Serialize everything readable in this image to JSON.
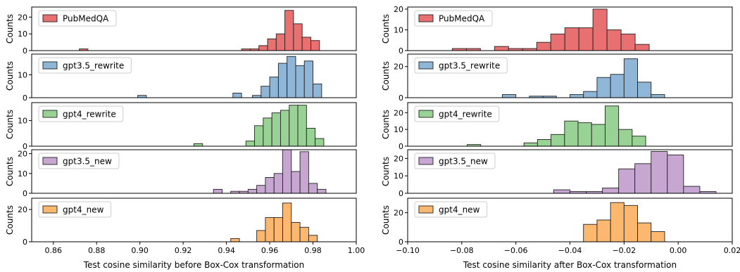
{
  "chart_data": [
    {
      "type": "histogram",
      "xlabel": "Test cosine similarity before Box-Cox transformation",
      "ylabel": "Counts",
      "xlim": [
        0.85,
        1.0
      ],
      "xticks": [
        0.86,
        0.88,
        0.9,
        0.92,
        0.94,
        0.96,
        0.98,
        1.0
      ],
      "xtick_labels": [
        "0.86",
        "0.88",
        "0.90",
        "0.92",
        "0.94",
        "0.96",
        "0.98",
        "1.00"
      ],
      "legend_position": "upper-left",
      "panels": [
        {
          "name": "PubMedQA",
          "color": "#e87070",
          "ylim": [
            0,
            26
          ],
          "yticks": [
            0,
            10,
            20
          ],
          "bins": [
            [
              0.872,
              0.876,
              1
            ],
            [
              0.947,
              0.951,
              1
            ],
            [
              0.951,
              0.955,
              1
            ],
            [
              0.955,
              0.959,
              3
            ],
            [
              0.959,
              0.963,
              7
            ],
            [
              0.963,
              0.967,
              10
            ],
            [
              0.967,
              0.971,
              24
            ],
            [
              0.971,
              0.975,
              16
            ],
            [
              0.975,
              0.979,
              8
            ],
            [
              0.979,
              0.983,
              6
            ]
          ]
        },
        {
          "name": "gpt3.5_rewrite",
          "color": "#8fb6d6",
          "ylim": [
            0,
            19
          ],
          "yticks": [
            0,
            10
          ],
          "bins": [
            [
              0.899,
              0.903,
              1
            ],
            [
              0.943,
              0.947,
              2
            ],
            [
              0.952,
              0.956,
              1
            ],
            [
              0.956,
              0.96,
              5
            ],
            [
              0.96,
              0.964,
              9
            ],
            [
              0.964,
              0.968,
              15
            ],
            [
              0.968,
              0.972,
              18
            ],
            [
              0.972,
              0.976,
              14
            ],
            [
              0.976,
              0.98,
              16
            ],
            [
              0.98,
              0.984,
              6
            ]
          ]
        },
        {
          "name": "gpt4_rewrite",
          "color": "#98d294",
          "ylim": [
            0,
            17
          ],
          "yticks": [
            0,
            10
          ],
          "bins": [
            [
              0.925,
              0.929,
              1
            ],
            [
              0.949,
              0.953,
              2
            ],
            [
              0.953,
              0.957,
              8
            ],
            [
              0.957,
              0.961,
              11
            ],
            [
              0.961,
              0.965,
              13
            ],
            [
              0.965,
              0.969,
              14
            ],
            [
              0.969,
              0.973,
              16
            ],
            [
              0.973,
              0.977,
              16
            ],
            [
              0.977,
              0.981,
              7
            ],
            [
              0.981,
              0.985,
              3
            ]
          ]
        },
        {
          "name": "gpt3.5_new",
          "color": "#c7a7d2",
          "ylim": [
            0,
            22
          ],
          "yticks": [
            0,
            10,
            20
          ],
          "bins": [
            [
              0.934,
              0.938,
              2
            ],
            [
              0.942,
              0.946,
              1
            ],
            [
              0.946,
              0.95,
              1
            ],
            [
              0.95,
              0.954,
              2
            ],
            [
              0.954,
              0.958,
              4
            ],
            [
              0.958,
              0.962,
              8
            ],
            [
              0.962,
              0.966,
              10
            ],
            [
              0.966,
              0.97,
              22
            ],
            [
              0.97,
              0.974,
              11
            ],
            [
              0.974,
              0.978,
              21
            ],
            [
              0.978,
              0.982,
              5
            ],
            [
              0.982,
              0.986,
              2
            ]
          ]
        },
        {
          "name": "gpt4_new",
          "color": "#fdb86f",
          "ylim": [
            0,
            27
          ],
          "yticks": [
            0,
            20
          ],
          "bins": [
            [
              0.942,
              0.946,
              2
            ],
            [
              0.954,
              0.958,
              7
            ],
            [
              0.958,
              0.962,
              15
            ],
            [
              0.962,
              0.966,
              15
            ],
            [
              0.966,
              0.97,
              24
            ],
            [
              0.97,
              0.974,
              12
            ],
            [
              0.974,
              0.978,
              9
            ],
            [
              0.978,
              0.982,
              4
            ]
          ]
        }
      ]
    },
    {
      "type": "histogram",
      "xlabel": "Test cosine similarity after Box-Cox transformation",
      "ylabel": "Counts",
      "xlim": [
        -0.1,
        0.02
      ],
      "xticks": [
        -0.1,
        -0.08,
        -0.06,
        -0.04,
        -0.02,
        0.0,
        0.02
      ],
      "xtick_labels": [
        "−0.10",
        "−0.08",
        "−0.06",
        "−0.04",
        "−0.02",
        "0.00",
        "0.02"
      ],
      "legend_position": "upper-left",
      "panels": [
        {
          "name": "PubMedQA",
          "color": "#e87070",
          "ylim": [
            0,
            21
          ],
          "yticks": [
            0,
            10,
            20
          ],
          "bins": [
            [
              -0.0835,
              -0.0783,
              1
            ],
            [
              -0.0783,
              -0.0731,
              1
            ],
            [
              -0.0679,
              -0.0627,
              2
            ],
            [
              -0.0627,
              -0.0575,
              1
            ],
            [
              -0.0575,
              -0.0523,
              1
            ],
            [
              -0.0523,
              -0.0471,
              4
            ],
            [
              -0.0471,
              -0.0419,
              8
            ],
            [
              -0.0419,
              -0.0367,
              11
            ],
            [
              -0.0367,
              -0.0315,
              11
            ],
            [
              -0.0315,
              -0.0263,
              20
            ],
            [
              -0.0263,
              -0.0211,
              10
            ],
            [
              -0.0211,
              -0.0159,
              8
            ],
            [
              -0.0159,
              -0.0107,
              3
            ]
          ]
        },
        {
          "name": "gpt3.5_rewrite",
          "color": "#8fb6d6",
          "ylim": [
            0,
            28
          ],
          "yticks": [
            0,
            20
          ],
          "bins": [
            [
              -0.065,
              -0.06,
              2
            ],
            [
              -0.055,
              -0.05,
              1
            ],
            [
              -0.05,
              -0.045,
              1
            ],
            [
              -0.04,
              -0.035,
              2
            ],
            [
              -0.035,
              -0.03,
              4
            ],
            [
              -0.03,
              -0.025,
              13
            ],
            [
              -0.025,
              -0.02,
              15
            ],
            [
              -0.02,
              -0.015,
              25
            ],
            [
              -0.015,
              -0.01,
              10
            ],
            [
              -0.01,
              -0.005,
              2
            ]
          ]
        },
        {
          "name": "gpt4_rewrite",
          "color": "#98d294",
          "ylim": [
            0,
            26
          ],
          "yticks": [
            0,
            10,
            20
          ],
          "bins": [
            [
              -0.078,
              -0.073,
              1
            ],
            [
              -0.057,
              -0.052,
              2
            ],
            [
              -0.052,
              -0.047,
              4
            ],
            [
              -0.047,
              -0.042,
              7
            ],
            [
              -0.042,
              -0.037,
              15
            ],
            [
              -0.037,
              -0.032,
              14
            ],
            [
              -0.032,
              -0.027,
              13
            ],
            [
              -0.027,
              -0.022,
              24
            ],
            [
              -0.022,
              -0.017,
              10
            ],
            [
              -0.017,
              -0.012,
              6
            ]
          ]
        },
        {
          "name": "gpt3.5_new",
          "color": "#c7a7d2",
          "ylim": [
            0,
            25
          ],
          "yticks": [
            0,
            10,
            20
          ],
          "bins": [
            [
              -0.046,
              -0.04,
              2
            ],
            [
              -0.04,
              -0.034,
              1
            ],
            [
              -0.034,
              -0.028,
              1
            ],
            [
              -0.028,
              -0.022,
              3
            ],
            [
              -0.022,
              -0.016,
              14
            ],
            [
              -0.016,
              -0.01,
              17
            ],
            [
              -0.01,
              -0.004,
              24
            ],
            [
              -0.004,
              0.002,
              22
            ],
            [
              0.002,
              0.008,
              4
            ],
            [
              0.008,
              0.014,
              1
            ]
          ]
        },
        {
          "name": "gpt4_new",
          "color": "#fdb86f",
          "ylim": [
            0,
            30
          ],
          "yticks": [
            0,
            20
          ],
          "bins": [
            [
              -0.035,
              -0.03,
              12
            ],
            [
              -0.03,
              -0.025,
              15
            ],
            [
              -0.025,
              -0.02,
              27
            ],
            [
              -0.02,
              -0.015,
              25
            ],
            [
              -0.015,
              -0.01,
              13
            ],
            [
              -0.01,
              -0.005,
              7
            ]
          ]
        }
      ]
    }
  ]
}
